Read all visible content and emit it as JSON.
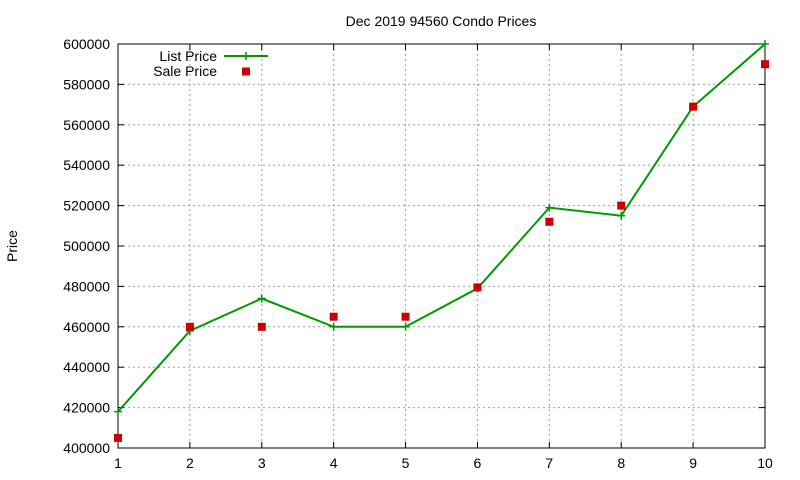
{
  "colors": {
    "list_price": "#009900",
    "sale_price": "#cc0000",
    "grid": "#a0a0a0",
    "axis": "#000000"
  },
  "chart_data": {
    "type": "line",
    "title": "Dec 2019 94560 Condo Prices",
    "xlabel": "",
    "ylabel": "Price",
    "xlim": [
      1,
      10
    ],
    "ylim": [
      400000,
      600000
    ],
    "x_ticks": [
      "1",
      "2",
      "3",
      "4",
      "5",
      "6",
      "7",
      "8",
      "9",
      "10"
    ],
    "y_ticks": [
      "400000",
      "420000",
      "440000",
      "460000",
      "480000",
      "500000",
      "520000",
      "540000",
      "560000",
      "580000",
      "600000"
    ],
    "grid": true,
    "legend_position": "top-left",
    "x": [
      1,
      2,
      3,
      4,
      5,
      6,
      7,
      8,
      9,
      10
    ],
    "series": [
      {
        "name": "List Price",
        "style": "linespoints",
        "marker": "plus",
        "values": [
          418000,
          458000,
          474000,
          460000,
          460000,
          479000,
          519000,
          515000,
          569000,
          600000
        ]
      },
      {
        "name": "Sale Price",
        "style": "points",
        "marker": "square",
        "values": [
          405000,
          460000,
          460000,
          465000,
          465000,
          479500,
          512000,
          520000,
          569000,
          590000
        ]
      }
    ]
  }
}
